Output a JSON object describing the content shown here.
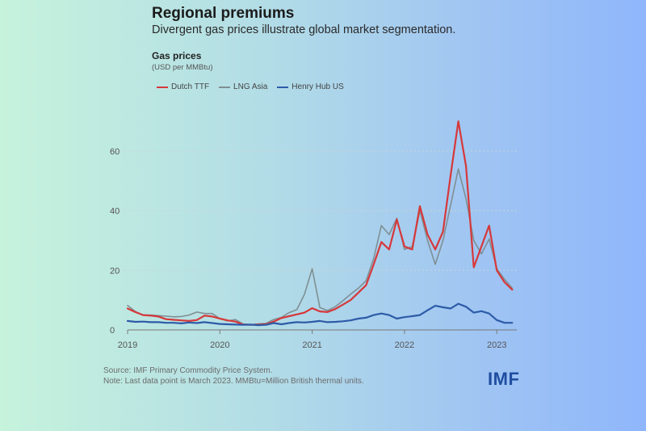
{
  "header": {
    "title": "Regional premiums",
    "subtitle": "Divergent gas prices illustrate global market segmentation."
  },
  "footer": {
    "source": "Source: IMF Primary Commodity Price System.",
    "note": "Note: Last data point is March 2023. MMBtu=Million British thermal units.",
    "logo": "IMF"
  },
  "chart_data": {
    "type": "line",
    "title": "Gas prices",
    "ylabel": "(USD per MMBtu)",
    "xlabel": "",
    "ylim": [
      0,
      70
    ],
    "yticks": [
      0,
      20,
      40,
      60
    ],
    "xticks": [
      "2019",
      "2020",
      "2021",
      "2022",
      "2023"
    ],
    "grid": "horizontal dotted",
    "legend_position": "top-left",
    "x": [
      "2019-01",
      "2019-02",
      "2019-03",
      "2019-04",
      "2019-05",
      "2019-06",
      "2019-07",
      "2019-08",
      "2019-09",
      "2019-10",
      "2019-11",
      "2019-12",
      "2020-01",
      "2020-02",
      "2020-03",
      "2020-04",
      "2020-05",
      "2020-06",
      "2020-07",
      "2020-08",
      "2020-09",
      "2020-10",
      "2020-11",
      "2020-12",
      "2021-01",
      "2021-02",
      "2021-03",
      "2021-04",
      "2021-05",
      "2021-06",
      "2021-07",
      "2021-08",
      "2021-09",
      "2021-10",
      "2021-11",
      "2021-12",
      "2022-01",
      "2022-02",
      "2022-03",
      "2022-04",
      "2022-05",
      "2022-06",
      "2022-07",
      "2022-08",
      "2022-09",
      "2022-10",
      "2022-11",
      "2022-12",
      "2023-01",
      "2023-02",
      "2023-03"
    ],
    "series": [
      {
        "name": "Dutch TTF",
        "color": "#d6383a",
        "values": [
          7.2,
          6.0,
          5.0,
          4.8,
          4.5,
          3.6,
          3.4,
          3.2,
          3.0,
          3.3,
          4.8,
          4.5,
          3.8,
          3.2,
          2.8,
          1.8,
          1.7,
          1.8,
          1.9,
          2.8,
          4.0,
          4.6,
          5.2,
          5.8,
          7.3,
          6.2,
          6.0,
          7.0,
          8.5,
          10.0,
          12.5,
          15.0,
          22.0,
          29.5,
          27.0,
          37.0,
          28.0,
          27.0,
          41.5,
          32.0,
          27.0,
          33.0,
          52.0,
          70.0,
          55.0,
          21.0,
          28.0,
          35.0,
          20.0,
          16.0,
          13.5
        ]
      },
      {
        "name": "LNG Asia",
        "color": "#7f8f93",
        "values": [
          8.2,
          6.2,
          5.0,
          5.0,
          4.8,
          4.6,
          4.4,
          4.5,
          5.0,
          6.0,
          5.5,
          5.5,
          3.8,
          3.0,
          3.5,
          2.0,
          1.8,
          2.0,
          2.2,
          3.5,
          4.2,
          5.8,
          6.8,
          12.0,
          20.5,
          7.5,
          6.5,
          7.8,
          9.8,
          12.0,
          14.0,
          16.5,
          24.0,
          35.0,
          32.0,
          37.5,
          27.0,
          28.0,
          40.0,
          30.0,
          22.0,
          30.0,
          42.0,
          54.0,
          44.0,
          30.0,
          25.5,
          30.5,
          20.5,
          17.0,
          14.0
        ]
      },
      {
        "name": "Henry Hub US",
        "color": "#2d5ba7",
        "values": [
          3.0,
          2.7,
          2.8,
          2.6,
          2.6,
          2.4,
          2.4,
          2.2,
          2.5,
          2.3,
          2.6,
          2.3,
          2.0,
          1.9,
          1.8,
          1.7,
          1.8,
          1.6,
          1.7,
          2.3,
          1.9,
          2.3,
          2.6,
          2.5,
          2.7,
          3.0,
          2.6,
          2.7,
          2.9,
          3.2,
          3.8,
          4.1,
          5.0,
          5.5,
          5.0,
          3.8,
          4.3,
          4.6,
          5.0,
          6.6,
          8.1,
          7.6,
          7.2,
          8.8,
          7.8,
          5.8,
          6.3,
          5.5,
          3.3,
          2.4,
          2.4
        ]
      }
    ]
  }
}
